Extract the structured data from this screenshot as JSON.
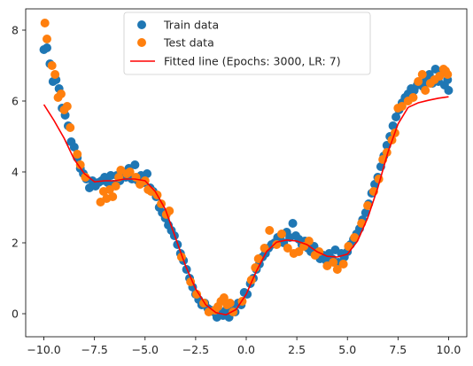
{
  "chart_data": {
    "type": "scatter",
    "xlim": [
      -10.9,
      10.9
    ],
    "ylim": [
      -0.65,
      8.6
    ],
    "xticks": [
      -10.0,
      -7.5,
      -5.0,
      -2.5,
      0.0,
      2.5,
      5.0,
      7.5,
      10.0
    ],
    "xtick_labels": [
      "−10.0",
      "−7.5",
      "−5.0",
      "−2.5",
      "0.0",
      "2.5",
      "5.0",
      "7.5",
      "10.0"
    ],
    "yticks": [
      0,
      2,
      4,
      6,
      8
    ],
    "ytick_labels": [
      "0",
      "2",
      "4",
      "6",
      "8"
    ],
    "grid": false,
    "legend_position": "top-center",
    "series": [
      {
        "name": "Train data",
        "kind": "scatter",
        "color": "#1f77b4",
        "points": [
          [
            -10.0,
            7.45
          ],
          [
            -9.85,
            7.5
          ],
          [
            -9.7,
            7.05
          ],
          [
            -9.55,
            6.55
          ],
          [
            -9.4,
            6.6
          ],
          [
            -9.25,
            6.35
          ],
          [
            -9.1,
            5.8
          ],
          [
            -8.95,
            5.6
          ],
          [
            -8.8,
            5.3
          ],
          [
            -8.65,
            4.85
          ],
          [
            -8.5,
            4.7
          ],
          [
            -8.35,
            4.4
          ],
          [
            -8.2,
            4.1
          ],
          [
            -8.05,
            3.95
          ],
          [
            -7.9,
            3.8
          ],
          [
            -7.75,
            3.55
          ],
          [
            -7.6,
            3.75
          ],
          [
            -7.45,
            3.6
          ],
          [
            -7.3,
            3.7
          ],
          [
            -7.15,
            3.75
          ],
          [
            -7.0,
            3.85
          ],
          [
            -6.85,
            3.7
          ],
          [
            -6.7,
            3.9
          ],
          [
            -6.55,
            3.65
          ],
          [
            -6.4,
            3.9
          ],
          [
            -6.25,
            3.75
          ],
          [
            -6.1,
            4.0
          ],
          [
            -5.95,
            3.85
          ],
          [
            -5.8,
            4.1
          ],
          [
            -5.65,
            3.8
          ],
          [
            -5.5,
            4.2
          ],
          [
            -5.35,
            3.75
          ],
          [
            -5.2,
            3.9
          ],
          [
            -5.05,
            3.7
          ],
          [
            -4.9,
            3.95
          ],
          [
            -4.75,
            3.55
          ],
          [
            -4.6,
            3.45
          ],
          [
            -4.45,
            3.3
          ],
          [
            -4.3,
            3.0
          ],
          [
            -4.15,
            2.85
          ],
          [
            -4.0,
            2.7
          ],
          [
            -3.85,
            2.5
          ],
          [
            -3.7,
            2.35
          ],
          [
            -3.55,
            2.2
          ],
          [
            -3.4,
            1.95
          ],
          [
            -3.25,
            1.7
          ],
          [
            -3.1,
            1.5
          ],
          [
            -2.95,
            1.25
          ],
          [
            -2.8,
            1.0
          ],
          [
            -2.65,
            0.75
          ],
          [
            -2.5,
            0.55
          ],
          [
            -2.35,
            0.4
          ],
          [
            -2.2,
            0.25
          ],
          [
            -2.05,
            0.3
          ],
          [
            -1.9,
            0.15
          ],
          [
            -1.75,
            0.1
          ],
          [
            -1.6,
            0.05
          ],
          [
            -1.45,
            -0.1
          ],
          [
            -1.3,
            0.05
          ],
          [
            -1.15,
            -0.05
          ],
          [
            -1.0,
            0.1
          ],
          [
            -0.85,
            -0.1
          ],
          [
            -0.7,
            0.15
          ],
          [
            -0.55,
            0.05
          ],
          [
            -0.4,
            0.3
          ],
          [
            -0.25,
            0.25
          ],
          [
            -0.1,
            0.6
          ],
          [
            0.05,
            0.55
          ],
          [
            0.2,
            0.85
          ],
          [
            0.35,
            1.0
          ],
          [
            0.5,
            1.25
          ],
          [
            0.65,
            1.4
          ],
          [
            0.8,
            1.6
          ],
          [
            0.95,
            1.7
          ],
          [
            1.1,
            1.85
          ],
          [
            1.25,
            1.95
          ],
          [
            1.4,
            2.0
          ],
          [
            1.55,
            2.15
          ],
          [
            1.7,
            2.2
          ],
          [
            1.85,
            2.0
          ],
          [
            2.0,
            2.3
          ],
          [
            2.15,
            2.15
          ],
          [
            2.3,
            2.55
          ],
          [
            2.45,
            2.2
          ],
          [
            2.6,
            2.1
          ],
          [
            2.75,
            1.95
          ],
          [
            2.9,
            2.05
          ],
          [
            3.05,
            1.85
          ],
          [
            3.2,
            1.75
          ],
          [
            3.35,
            1.9
          ],
          [
            3.5,
            1.7
          ],
          [
            3.65,
            1.55
          ],
          [
            3.8,
            1.65
          ],
          [
            3.95,
            1.5
          ],
          [
            4.1,
            1.7
          ],
          [
            4.25,
            1.55
          ],
          [
            4.4,
            1.8
          ],
          [
            4.55,
            1.45
          ],
          [
            4.7,
            1.7
          ],
          [
            4.85,
            1.6
          ],
          [
            5.0,
            1.75
          ],
          [
            5.15,
            1.95
          ],
          [
            5.3,
            2.1
          ],
          [
            5.45,
            2.25
          ],
          [
            5.6,
            2.4
          ],
          [
            5.75,
            2.65
          ],
          [
            5.9,
            2.85
          ],
          [
            6.05,
            3.1
          ],
          [
            6.2,
            3.4
          ],
          [
            6.35,
            3.65
          ],
          [
            6.5,
            3.85
          ],
          [
            6.65,
            4.15
          ],
          [
            6.8,
            4.45
          ],
          [
            6.95,
            4.75
          ],
          [
            7.1,
            5.0
          ],
          [
            7.25,
            5.3
          ],
          [
            7.4,
            5.55
          ],
          [
            7.55,
            5.75
          ],
          [
            7.7,
            5.95
          ],
          [
            7.85,
            6.1
          ],
          [
            8.0,
            6.2
          ],
          [
            8.15,
            6.35
          ],
          [
            8.3,
            6.3
          ],
          [
            8.45,
            6.45
          ],
          [
            8.6,
            6.5
          ],
          [
            8.75,
            6.4
          ],
          [
            8.9,
            6.6
          ],
          [
            9.05,
            6.75
          ],
          [
            9.2,
            6.5
          ],
          [
            9.35,
            6.9
          ],
          [
            9.5,
            6.55
          ],
          [
            9.65,
            6.8
          ],
          [
            9.8,
            6.45
          ],
          [
            9.95,
            6.6
          ],
          [
            10.0,
            6.3
          ]
        ]
      },
      {
        "name": "Test data",
        "kind": "scatter",
        "color": "#ff7f0e",
        "points": [
          [
            -9.95,
            8.2
          ],
          [
            -9.85,
            7.75
          ],
          [
            -9.6,
            7.0
          ],
          [
            -9.45,
            6.75
          ],
          [
            -9.3,
            6.1
          ],
          [
            -9.15,
            6.2
          ],
          [
            -9.0,
            5.75
          ],
          [
            -8.85,
            5.85
          ],
          [
            -8.7,
            5.25
          ],
          [
            -8.35,
            4.5
          ],
          [
            -8.2,
            4.2
          ],
          [
            -7.95,
            3.85
          ],
          [
            -7.2,
            3.15
          ],
          [
            -7.05,
            3.45
          ],
          [
            -6.9,
            3.25
          ],
          [
            -6.75,
            3.5
          ],
          [
            -6.6,
            3.3
          ],
          [
            -6.45,
            3.6
          ],
          [
            -6.3,
            3.85
          ],
          [
            -6.2,
            4.05
          ],
          [
            -5.9,
            3.95
          ],
          [
            -5.75,
            4.0
          ],
          [
            -5.45,
            3.85
          ],
          [
            -5.25,
            3.65
          ],
          [
            -5.0,
            3.75
          ],
          [
            -4.85,
            3.5
          ],
          [
            -4.7,
            3.45
          ],
          [
            -4.4,
            3.35
          ],
          [
            -4.2,
            3.1
          ],
          [
            -3.95,
            2.8
          ],
          [
            -3.8,
            2.9
          ],
          [
            -3.2,
            1.6
          ],
          [
            -2.75,
            0.9
          ],
          [
            -2.45,
            0.55
          ],
          [
            -2.1,
            0.3
          ],
          [
            -1.85,
            0.05
          ],
          [
            -1.55,
            0.1
          ],
          [
            -1.4,
            0.2
          ],
          [
            -1.25,
            0.35
          ],
          [
            -1.1,
            0.45
          ],
          [
            -0.95,
            0.25
          ],
          [
            -0.8,
            0.3
          ],
          [
            -0.65,
            0.05
          ],
          [
            -0.2,
            0.35
          ],
          [
            0.25,
            0.95
          ],
          [
            0.45,
            1.3
          ],
          [
            0.6,
            1.55
          ],
          [
            0.9,
            1.85
          ],
          [
            1.15,
            2.35
          ],
          [
            1.5,
            1.95
          ],
          [
            1.75,
            2.25
          ],
          [
            2.05,
            1.85
          ],
          [
            2.35,
            1.7
          ],
          [
            2.6,
            1.75
          ],
          [
            2.85,
            1.9
          ],
          [
            3.1,
            2.05
          ],
          [
            3.4,
            1.65
          ],
          [
            3.6,
            1.75
          ],
          [
            4.0,
            1.35
          ],
          [
            4.3,
            1.45
          ],
          [
            4.5,
            1.25
          ],
          [
            4.8,
            1.4
          ],
          [
            5.05,
            1.9
          ],
          [
            5.35,
            2.15
          ],
          [
            5.7,
            2.55
          ],
          [
            6.0,
            3.05
          ],
          [
            6.3,
            3.45
          ],
          [
            6.55,
            3.8
          ],
          [
            6.75,
            4.35
          ],
          [
            6.95,
            4.55
          ],
          [
            7.2,
            4.9
          ],
          [
            7.35,
            5.1
          ],
          [
            7.5,
            5.8
          ],
          [
            7.7,
            5.85
          ],
          [
            8.0,
            6.0
          ],
          [
            8.25,
            6.1
          ],
          [
            8.5,
            6.55
          ],
          [
            8.7,
            6.75
          ],
          [
            8.85,
            6.3
          ],
          [
            9.1,
            6.5
          ],
          [
            9.3,
            6.6
          ],
          [
            9.55,
            6.7
          ],
          [
            9.75,
            6.9
          ],
          [
            9.85,
            6.85
          ],
          [
            9.95,
            6.75
          ]
        ]
      },
      {
        "name": "Fitted line (Epochs: 3000, LR: 7)",
        "kind": "line",
        "color": "#ff0000",
        "points": [
          [
            -10.0,
            5.9
          ],
          [
            -9.5,
            5.45
          ],
          [
            -9.0,
            4.95
          ],
          [
            -8.5,
            4.35
          ],
          [
            -8.0,
            3.95
          ],
          [
            -7.5,
            3.72
          ],
          [
            -7.0,
            3.75
          ],
          [
            -6.5,
            3.75
          ],
          [
            -6.0,
            3.8
          ],
          [
            -5.5,
            3.8
          ],
          [
            -5.0,
            3.75
          ],
          [
            -4.5,
            3.45
          ],
          [
            -4.0,
            2.95
          ],
          [
            -3.5,
            2.15
          ],
          [
            -3.0,
            1.35
          ],
          [
            -2.5,
            0.7
          ],
          [
            -2.0,
            0.25
          ],
          [
            -1.5,
            0.03
          ],
          [
            -1.0,
            -0.03
          ],
          [
            -0.5,
            0.12
          ],
          [
            0.0,
            0.55
          ],
          [
            0.5,
            1.2
          ],
          [
            1.0,
            1.75
          ],
          [
            1.5,
            2.02
          ],
          [
            2.0,
            2.08
          ],
          [
            2.5,
            2.05
          ],
          [
            3.0,
            1.95
          ],
          [
            3.5,
            1.75
          ],
          [
            4.0,
            1.62
          ],
          [
            4.5,
            1.6
          ],
          [
            5.0,
            1.68
          ],
          [
            5.5,
            2.05
          ],
          [
            6.0,
            2.7
          ],
          [
            6.5,
            3.55
          ],
          [
            7.0,
            4.55
          ],
          [
            7.5,
            5.35
          ],
          [
            8.0,
            5.82
          ],
          [
            8.5,
            5.95
          ],
          [
            9.0,
            6.02
          ],
          [
            9.5,
            6.08
          ],
          [
            10.0,
            6.12
          ]
        ]
      }
    ]
  },
  "legend": {
    "items": [
      {
        "label": "Train data",
        "color": "#1f77b4",
        "kind": "marker"
      },
      {
        "label": "Test data",
        "color": "#ff7f0e",
        "kind": "marker"
      },
      {
        "label": "Fitted line (Epochs: 3000, LR: 7)",
        "color": "#ff0000",
        "kind": "line"
      }
    ]
  }
}
